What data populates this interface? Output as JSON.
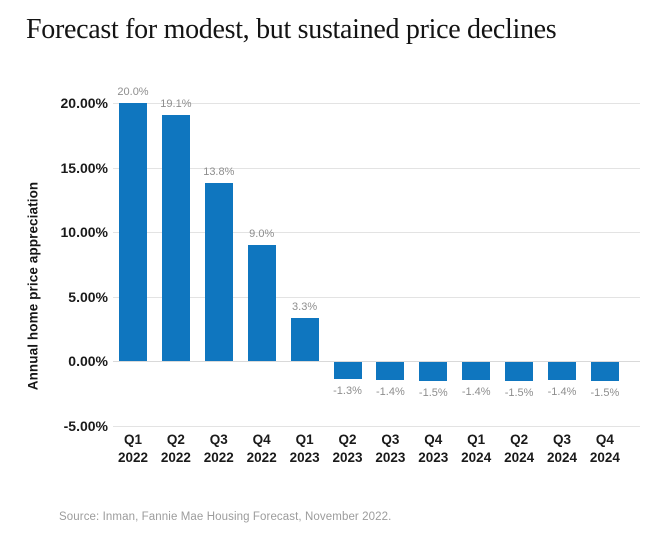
{
  "chart_data": {
    "type": "bar",
    "title": "Forecast for modest, but sustained price declines",
    "ylabel": "Annual home price appreciation",
    "source": "Source: Inman, Fannie Mae Housing Forecast, November 2022.",
    "categories": [
      {
        "quarter": "Q1",
        "year": "2022"
      },
      {
        "quarter": "Q2",
        "year": "2022"
      },
      {
        "quarter": "Q3",
        "year": "2022"
      },
      {
        "quarter": "Q4",
        "year": "2022"
      },
      {
        "quarter": "Q1",
        "year": "2023"
      },
      {
        "quarter": "Q2",
        "year": "2023"
      },
      {
        "quarter": "Q3",
        "year": "2023"
      },
      {
        "quarter": "Q4",
        "year": "2023"
      },
      {
        "quarter": "Q1",
        "year": "2024"
      },
      {
        "quarter": "Q2",
        "year": "2024"
      },
      {
        "quarter": "Q3",
        "year": "2024"
      },
      {
        "quarter": "Q4",
        "year": "2024"
      }
    ],
    "values": [
      20.0,
      19.1,
      13.8,
      9.0,
      3.3,
      -1.3,
      -1.4,
      -1.5,
      -1.4,
      -1.5,
      -1.4,
      -1.5
    ],
    "value_labels": [
      "20.0%",
      "19.1%",
      "13.8%",
      "9.0%",
      "3.3%",
      "-1.3%",
      "-1.4%",
      "-1.5%",
      "-1.4%",
      "-1.5%",
      "-1.4%",
      "-1.5%"
    ],
    "yticks": [
      {
        "value": 20,
        "label": "20.00%"
      },
      {
        "value": 15,
        "label": "15.00%"
      },
      {
        "value": 10,
        "label": "10.00%"
      },
      {
        "value": 5,
        "label": "5.00%"
      },
      {
        "value": 0,
        "label": "0.00%"
      },
      {
        "value": -5,
        "label": "-5.00%"
      }
    ],
    "ylim": [
      -5,
      20
    ],
    "grid": true,
    "legend": null,
    "colors": {
      "bar": "#0f76bf",
      "value_label": "#8e8e8e",
      "axis_text": "#1a1a1a",
      "gridline": "#e3e3e3",
      "source_text": "#9c9c9c"
    }
  }
}
